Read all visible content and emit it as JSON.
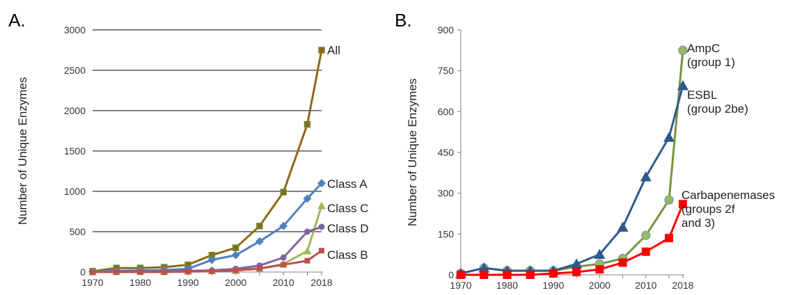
{
  "chart_data": [
    {
      "type": "line",
      "panel_label": "A.",
      "ylabel": "Number of Unique Enzymes",
      "ylim": [
        0,
        3000
      ],
      "yticks": [
        0,
        500,
        1000,
        1500,
        2000,
        2500,
        3000
      ],
      "xticks": [
        "1970",
        "1980",
        "1990",
        "2000",
        "2010",
        "2018"
      ],
      "x": [
        1970,
        1975,
        1980,
        1985,
        1990,
        1995,
        2000,
        2005,
        2010,
        2015,
        2018
      ],
      "grid": "horizontal",
      "series": [
        {
          "name": "All",
          "color": "#8B6914",
          "marker": "square",
          "values": [
            10,
            50,
            50,
            60,
            90,
            210,
            300,
            570,
            990,
            1830,
            2750
          ]
        },
        {
          "name": "Class A",
          "color": "#4F81BD",
          "marker": "diamond",
          "values": [
            5,
            15,
            20,
            25,
            40,
            150,
            210,
            380,
            570,
            910,
            1100
          ]
        },
        {
          "name": "Class C",
          "color": "#9BBB59",
          "marker": "triangle",
          "values": [
            0,
            5,
            5,
            5,
            10,
            15,
            20,
            40,
            100,
            260,
            820
          ]
        },
        {
          "name": "Class D",
          "color": "#8064A2",
          "marker": "circle",
          "values": [
            0,
            5,
            5,
            10,
            15,
            20,
            40,
            80,
            180,
            500,
            560
          ]
        },
        {
          "name": "Class B",
          "color": "#C0504D",
          "marker": "square",
          "values": [
            0,
            0,
            0,
            0,
            5,
            10,
            20,
            45,
            90,
            140,
            265
          ]
        }
      ]
    },
    {
      "type": "line",
      "panel_label": "B.",
      "ylabel": "Number of Unique Enzymes",
      "ylim": [
        0,
        900
      ],
      "yticks": [
        0,
        150,
        300,
        450,
        600,
        750,
        900
      ],
      "xticks": [
        "1970",
        "1980",
        "1990",
        "2000",
        "2010",
        "2018"
      ],
      "x": [
        1970,
        1975,
        1980,
        1985,
        1990,
        1995,
        2000,
        2005,
        2010,
        2015,
        2018
      ],
      "grid": "none",
      "series": [
        {
          "name": "AmpC (group 1)",
          "label_lines": [
            "AmpC",
            "(group 1)"
          ],
          "color": "#77933C",
          "marker": "circle",
          "marker_fill": "#9BBB59",
          "values": [
            5,
            25,
            15,
            15,
            15,
            30,
            40,
            60,
            145,
            275,
            825
          ]
        },
        {
          "name": "ESBL (group 2be)",
          "label_lines": [
            "ESBL",
            "(group 2be)"
          ],
          "color": "#2C5A8C",
          "marker": "triangle",
          "values": [
            5,
            25,
            15,
            15,
            15,
            40,
            75,
            175,
            360,
            505,
            695
          ]
        },
        {
          "name": "Carbapenemases (groups 2f and 3)",
          "label_lines": [
            "Carbapenemases",
            "(groups 2f",
            "and 3)"
          ],
          "color": "#FF0000",
          "marker": "square",
          "values": [
            0,
            0,
            0,
            0,
            5,
            10,
            20,
            45,
            85,
            135,
            260
          ]
        }
      ]
    }
  ]
}
